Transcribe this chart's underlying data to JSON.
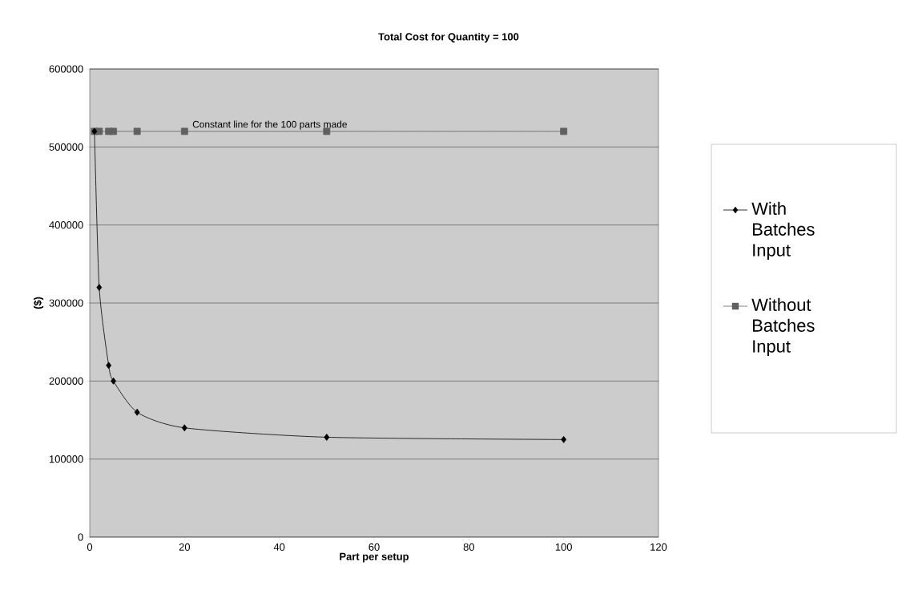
{
  "chart_data": {
    "type": "line",
    "title": "Total Cost for Quantity = 100",
    "xlabel": "Part per setup",
    "ylabel": "($)",
    "x": [
      1,
      2,
      4,
      5,
      10,
      20,
      50,
      100
    ],
    "series": [
      {
        "name": "With Batches Input",
        "color": "#000000",
        "marker": "diamond",
        "values": [
          520000,
          320000,
          220000,
          200000,
          160000,
          140000,
          128000,
          125000
        ]
      },
      {
        "name": "Without Batches Input",
        "color": "#606060",
        "marker": "square",
        "values": [
          520000,
          520000,
          520000,
          520000,
          520000,
          520000,
          520000,
          520000
        ]
      }
    ],
    "annotations": [
      {
        "text": "Constant line for the 100 parts made",
        "x": 38,
        "y": 520000
      }
    ],
    "xlim": [
      0,
      120
    ],
    "xticks": [
      0,
      20,
      40,
      60,
      80,
      100,
      120
    ],
    "ylim": [
      0,
      600000
    ],
    "yticks": [
      0,
      100000,
      200000,
      300000,
      400000,
      500000,
      600000
    ],
    "grid": "y",
    "legend": "right"
  }
}
